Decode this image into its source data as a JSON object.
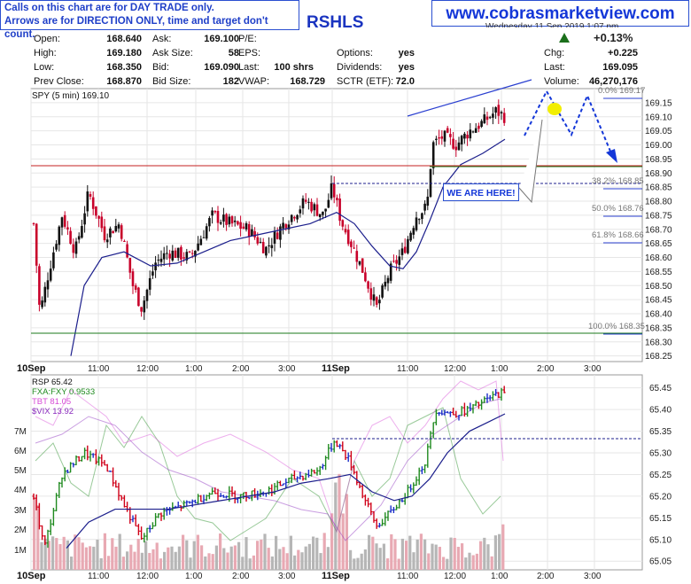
{
  "notice": {
    "line1": "Calls on this chart are for DAY TRADE only.",
    "line2": "Arrows are for DIRECTION ONLY, time and target don't count."
  },
  "website": "www.cobrasmarketview.com",
  "ticker_partial": "RSHLS",
  "date_partial": "Wednesday 11 Sep 2019 1:07 pm",
  "change_percent": "+0.13%",
  "quote": {
    "open_label": "Open:",
    "open": "168.640",
    "high_label": "High:",
    "high": "169.180",
    "low_label": "Low:",
    "low": "168.350",
    "prev_close_label": "Prev Close:",
    "prev_close": "168.870",
    "ask_label": "Ask:",
    "ask": "169.100",
    "ask_size_label": "Ask Size:",
    "ask_size": "58",
    "bid_label": "Bid:",
    "bid": "169.090",
    "bid_size_label": "Bid Size:",
    "bid_size": "182",
    "pe_label": "P/E:",
    "eps_label": "EPS:",
    "last_trade_label": "Last:",
    "last_trade": "100 shrs",
    "vwap_label": "VWAP:",
    "vwap": "168.729",
    "options_label": "Options:",
    "options": "yes",
    "dividends_label": "Dividends:",
    "dividends": "yes",
    "sctr_label": "SCTR (ETF):",
    "sctr": "72.0",
    "chg_label": "Chg:",
    "chg": "+0.225",
    "last_label": "Last:",
    "last": "169.095",
    "volume_label": "Volume:",
    "volume": "46,270,176"
  },
  "annotation": "WE ARE HERE!",
  "colors": {
    "up_bar": "#111111",
    "down_bar": "#c8002a",
    "ma_line": "#1c1f8c",
    "brand_blue": "#1437d8",
    "support_line": "#1b7a1b",
    "resistance_line": "#c62020",
    "fib_label": "#666666",
    "highlight": "#f2ee00"
  },
  "chart_data": [
    {
      "type": "bar",
      "subtype": "ohlc-5min",
      "legend": "SPY (5 min) 169.10",
      "x_tick_labels": [
        "10Sep",
        "11:00",
        "12:00",
        "1:00",
        "2:00",
        "3:00",
        "11Sep",
        "11:00",
        "12:00",
        "1:00",
        "2:00",
        "3:00"
      ],
      "y_ticks": [
        "168.25",
        "168.30",
        "168.35",
        "168.40",
        "168.45",
        "168.50",
        "168.55",
        "168.60",
        "168.65",
        "168.70",
        "168.75",
        "168.80",
        "168.85",
        "168.90",
        "168.95",
        "169.00",
        "169.05",
        "169.10",
        "169.15"
      ],
      "ylim": [
        168.23,
        169.2
      ],
      "moving_average": "blue line",
      "horizontal_lines": [
        {
          "color": "red",
          "value": 168.925
        },
        {
          "color": "green",
          "value": 168.925
        },
        {
          "color": "green",
          "value": 168.35
        },
        {
          "style": "dashed",
          "value": 168.865
        }
      ],
      "fibonacci": [
        {
          "label": "0.0% 169.17",
          "value": 169.17
        },
        {
          "label": "38.2% 168.85",
          "value": 168.85
        },
        {
          "label": "50.0% 168.76",
          "value": 168.76
        },
        {
          "label": "61.8% 168.66",
          "value": 168.66
        },
        {
          "label": "100.0% 168.35",
          "value": 168.35
        }
      ],
      "projection": "dashed blue zig-zag arrow: up, down, up, then down"
    },
    {
      "type": "bar",
      "subtype": "price-and-volume",
      "legend": [
        {
          "name": "RSP 65.42",
          "color": "#111111"
        },
        {
          "name": "FXA:FXY 0.9533",
          "color": "#1f8a1f"
        },
        {
          "name": "TBT 81.05",
          "color": "#d64bd6"
        },
        {
          "name": "$VIX 13.92",
          "color": "#8a2bbd"
        }
      ],
      "x_tick_labels": [
        "10Sep",
        "11:00",
        "12:00",
        "1:00",
        "2:00",
        "3:00",
        "11Sep",
        "11:00",
        "12:00",
        "1:00",
        "2:00",
        "3:00"
      ],
      "y_ticks_right": [
        "65.05",
        "65.10",
        "65.15",
        "65.20",
        "65.25",
        "65.30",
        "65.35",
        "65.40",
        "65.45"
      ],
      "y_ticks_left": [
        "1M",
        "2M",
        "3M",
        "4M",
        "5M",
        "6M",
        "7M"
      ],
      "ylim": [
        65.03,
        65.48
      ],
      "bar_colors": "green up, red down, blue neutral"
    }
  ]
}
